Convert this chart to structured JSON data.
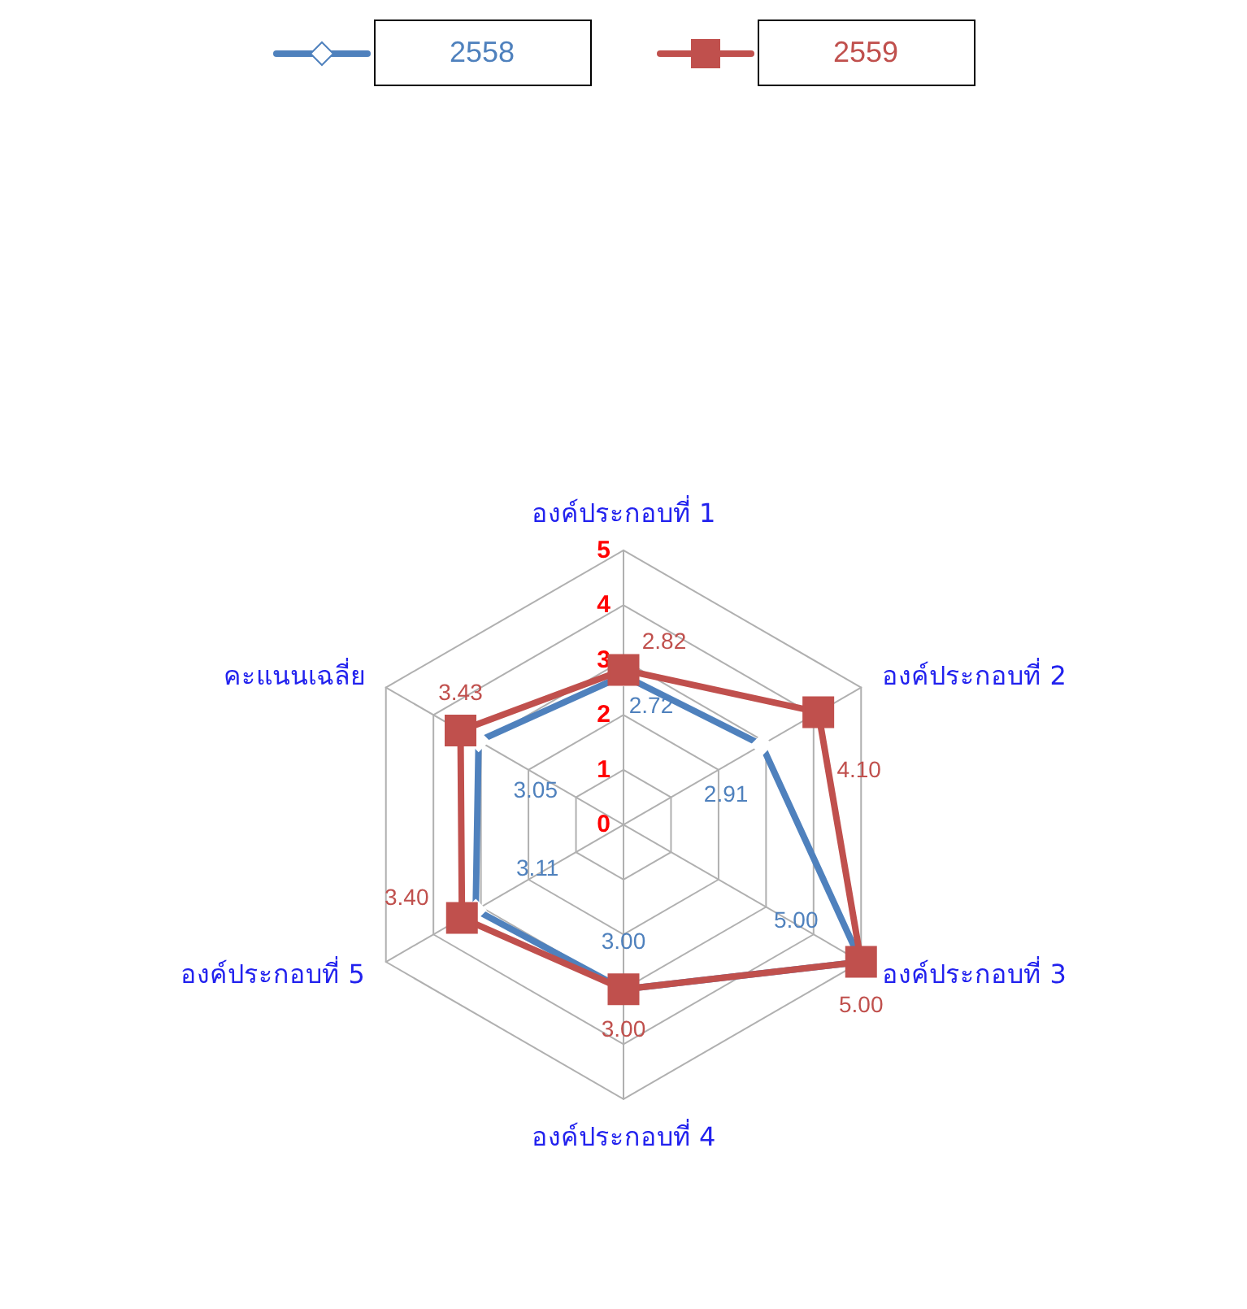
{
  "chart_data": {
    "type": "radar",
    "categories": [
      "องค์ประกอบที่ 1",
      "องค์ประกอบที่ 2",
      "องค์ประกอบที่ 3",
      "องค์ประกอบที่ 4",
      "องค์ประกอบที่ 5",
      "คะแนนเฉลี่ย"
    ],
    "series": [
      {
        "name": "2558",
        "color": "#4f81bd",
        "marker": "diamond",
        "values": [
          2.72,
          2.91,
          5.0,
          3.0,
          3.11,
          3.05
        ],
        "value_labels": [
          "2.72",
          "2.91",
          "5.00",
          "3.00",
          "3.11",
          "3.05"
        ]
      },
      {
        "name": "2559",
        "color": "#c0504d",
        "marker": "square",
        "values": [
          2.82,
          4.1,
          5.0,
          3.0,
          3.4,
          3.43
        ],
        "value_labels": [
          "2.82",
          "4.10",
          "5.00",
          "3.00",
          "3.40",
          "3.43"
        ]
      }
    ],
    "ylim": [
      0,
      5
    ],
    "yticks": [
      0,
      1,
      2,
      3,
      4,
      5
    ],
    "legend": "top",
    "grid": true
  }
}
